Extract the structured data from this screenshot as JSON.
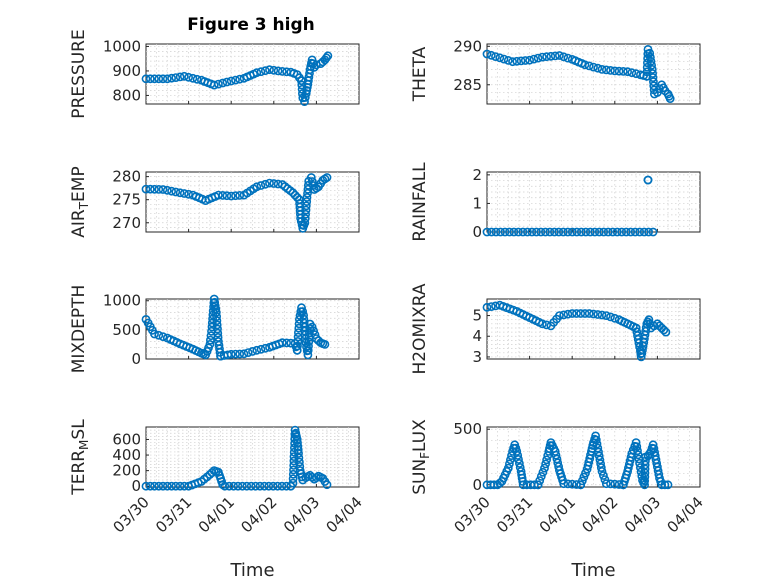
{
  "figure": {
    "title": "Figure 3 high",
    "marker_color": "#0072BD"
  },
  "chart_data": [
    {
      "type": "scatter",
      "ylabel": "PRESSURE",
      "xlabel": "",
      "xlim": [
        0,
        5
      ],
      "ylim": [
        765,
        1010
      ],
      "yticks": [
        800,
        900,
        1000
      ],
      "xticks": [],
      "segments": [
        [
          [
            0,
            868
          ],
          [
            0.5,
            868
          ],
          [
            0.9,
            878
          ],
          [
            1.3,
            862
          ],
          [
            1.6,
            842
          ],
          [
            1.9,
            855
          ],
          [
            2.3,
            870
          ],
          [
            2.6,
            893
          ],
          [
            2.9,
            905
          ],
          [
            3.2,
            898
          ],
          [
            3.4,
            895
          ],
          [
            3.55,
            885
          ],
          [
            3.65,
            860
          ]
        ],
        [
          [
            3.65,
            860
          ],
          [
            3.68,
            790
          ],
          [
            3.72,
            775
          ],
          [
            3.76,
            808
          ],
          [
            3.8,
            845
          ],
          [
            3.85,
            905
          ],
          [
            3.9,
            945
          ],
          [
            3.95,
            915
          ],
          [
            4.0,
            925
          ],
          [
            4.1,
            930
          ],
          [
            4.2,
            945
          ],
          [
            4.27,
            962
          ]
        ]
      ]
    },
    {
      "type": "scatter",
      "ylabel": "THETA",
      "xlabel": "",
      "xlim": [
        0,
        5
      ],
      "ylim": [
        282.5,
        290.3
      ],
      "yticks": [
        285,
        290
      ],
      "xticks": [],
      "segments": [
        [
          [
            0,
            289
          ],
          [
            0.3,
            288.5
          ],
          [
            0.6,
            288
          ],
          [
            1.0,
            288.2
          ],
          [
            1.3,
            288.6
          ],
          [
            1.7,
            288.8
          ],
          [
            2.0,
            288.3
          ],
          [
            2.3,
            287.6
          ],
          [
            2.7,
            287
          ],
          [
            3.0,
            286.8
          ],
          [
            3.3,
            286.7
          ],
          [
            3.6,
            286.3
          ],
          [
            3.75,
            286.1
          ]
        ],
        [
          [
            3.75,
            286.1
          ],
          [
            3.78,
            289.6
          ],
          [
            3.82,
            289.1
          ],
          [
            3.88,
            287
          ],
          [
            3.93,
            283.8
          ],
          [
            4.0,
            284
          ],
          [
            4.1,
            285
          ],
          [
            4.18,
            284.2
          ],
          [
            4.25,
            283.8
          ],
          [
            4.3,
            283.2
          ]
        ]
      ]
    },
    {
      "type": "scatter",
      "ylabel": "AIR_TEMP",
      "xlabel": "",
      "xlim": [
        0,
        5
      ],
      "ylim": [
        268,
        281
      ],
      "yticks": [
        270,
        275,
        280
      ],
      "xticks": [],
      "segments": [
        [
          [
            0,
            277.3
          ],
          [
            0.4,
            277.2
          ],
          [
            0.8,
            276.5
          ],
          [
            1.1,
            276
          ],
          [
            1.4,
            274.8
          ],
          [
            1.7,
            276
          ],
          [
            2.0,
            275.8
          ],
          [
            2.3,
            276
          ],
          [
            2.6,
            277.8
          ],
          [
            2.9,
            278.6
          ],
          [
            3.2,
            278.3
          ],
          [
            3.45,
            276.5
          ],
          [
            3.6,
            275
          ]
        ],
        [
          [
            3.6,
            275
          ],
          [
            3.63,
            271
          ],
          [
            3.68,
            268.8
          ],
          [
            3.73,
            270
          ],
          [
            3.78,
            275.5
          ],
          [
            3.82,
            279
          ],
          [
            3.88,
            279.8
          ],
          [
            3.95,
            277.2
          ],
          [
            4.05,
            277.8
          ],
          [
            4.15,
            279.2
          ],
          [
            4.25,
            279.8
          ]
        ]
      ]
    },
    {
      "type": "scatter",
      "ylabel": "RAINFALL",
      "xlabel": "",
      "xlim": [
        0,
        5
      ],
      "ylim": [
        0,
        2.1
      ],
      "yticks": [
        0,
        1,
        2
      ],
      "xticks": [],
      "segments": [
        [
          [
            0,
            0
          ],
          [
            3.9,
            0
          ]
        ],
        [
          [
            3.78,
            1.82
          ],
          [
            3.78,
            1.82
          ]
        ]
      ]
    },
    {
      "type": "scatter",
      "ylabel": "MIXDEPTH",
      "xlabel": "",
      "xlim": [
        0,
        5
      ],
      "ylim": [
        0,
        1030
      ],
      "yticks": [
        0,
        500,
        1000
      ],
      "xticks": [],
      "segments": [
        [
          [
            0,
            680
          ],
          [
            0.2,
            430
          ],
          [
            0.5,
            360
          ],
          [
            0.8,
            260
          ],
          [
            1.1,
            170
          ],
          [
            1.3,
            100
          ],
          [
            1.4,
            70
          ],
          [
            1.5,
            250
          ],
          [
            1.55,
            550
          ],
          [
            1.6,
            1030
          ],
          [
            1.65,
            800
          ],
          [
            1.7,
            300
          ],
          [
            1.75,
            50
          ]
        ],
        [
          [
            1.75,
            50
          ],
          [
            2.0,
            80
          ],
          [
            2.3,
            90
          ],
          [
            2.6,
            150
          ],
          [
            2.9,
            200
          ],
          [
            3.2,
            280
          ],
          [
            3.5,
            270
          ],
          [
            3.55,
            150
          ]
        ],
        [
          [
            3.55,
            150
          ],
          [
            3.6,
            680
          ],
          [
            3.65,
            880
          ],
          [
            3.7,
            750
          ],
          [
            3.75,
            280
          ],
          [
            3.8,
            70
          ],
          [
            3.85,
            600
          ],
          [
            3.9,
            550
          ],
          [
            4.0,
            350
          ],
          [
            4.1,
            280
          ],
          [
            4.2,
            250
          ]
        ]
      ]
    },
    {
      "type": "scatter",
      "ylabel": "H2OMIXRA",
      "xlabel": "",
      "xlim": [
        0,
        5
      ],
      "ylim": [
        2.9,
        5.8
      ],
      "yticks": [
        3,
        4,
        5
      ],
      "xticks": [],
      "segments": [
        [
          [
            0,
            5.4
          ],
          [
            0.3,
            5.5
          ],
          [
            0.7,
            5.2
          ],
          [
            1.0,
            4.9
          ],
          [
            1.3,
            4.6
          ],
          [
            1.5,
            4.5
          ],
          [
            1.7,
            5.0
          ],
          [
            2.0,
            5.1
          ],
          [
            2.4,
            5.1
          ],
          [
            2.8,
            5.0
          ],
          [
            3.1,
            4.8
          ],
          [
            3.3,
            4.6
          ],
          [
            3.5,
            4.4
          ]
        ],
        [
          [
            3.5,
            4.4
          ],
          [
            3.6,
            3.3
          ],
          [
            3.62,
            3.0
          ],
          [
            3.68,
            3.7
          ],
          [
            3.75,
            4.6
          ],
          [
            3.8,
            4.8
          ],
          [
            3.85,
            4.4
          ],
          [
            3.92,
            4.5
          ],
          [
            4.0,
            4.6
          ],
          [
            4.1,
            4.4
          ],
          [
            4.2,
            4.2
          ]
        ]
      ]
    },
    {
      "type": "scatter",
      "ylabel": "TERR_MSL",
      "xlabel": "Time",
      "xlim": [
        0,
        5
      ],
      "ylim": [
        -10,
        760
      ],
      "yticks": [
        0,
        200,
        400,
        600
      ],
      "xticks": [
        "03/30",
        "03/31",
        "04/01",
        "04/02",
        "04/03",
        "04/04"
      ],
      "segments": [
        [
          [
            0,
            0
          ],
          [
            1.0,
            0
          ],
          [
            1.3,
            60
          ],
          [
            1.5,
            150
          ],
          [
            1.6,
            200
          ],
          [
            1.7,
            180
          ],
          [
            1.75,
            100
          ],
          [
            1.8,
            20
          ],
          [
            1.85,
            0
          ],
          [
            3.4,
            0
          ]
        ],
        [
          [
            3.4,
            0
          ],
          [
            3.45,
            40
          ],
          [
            3.5,
            720
          ],
          [
            3.55,
            600
          ],
          [
            3.58,
            420
          ],
          [
            3.62,
            200
          ],
          [
            3.68,
            80
          ],
          [
            3.75,
            110
          ],
          [
            3.85,
            140
          ],
          [
            3.95,
            90
          ],
          [
            4.05,
            130
          ],
          [
            4.15,
            100
          ],
          [
            4.25,
            20
          ]
        ]
      ]
    },
    {
      "type": "scatter",
      "ylabel": "SUN_FLUX",
      "xlabel": "Time",
      "xlim": [
        0,
        5
      ],
      "ylim": [
        -20,
        520
      ],
      "yticks": [
        0,
        500
      ],
      "xticks": [
        "03/30",
        "03/31",
        "04/01",
        "04/02",
        "04/03",
        "04/04"
      ],
      "segments": [
        [
          [
            0,
            0
          ],
          [
            0.25,
            0
          ],
          [
            0.35,
            30
          ],
          [
            0.5,
            150
          ],
          [
            0.6,
            300
          ],
          [
            0.65,
            360
          ],
          [
            0.7,
            300
          ],
          [
            0.8,
            120
          ],
          [
            0.85,
            0
          ],
          [
            1.2,
            0
          ]
        ],
        [
          [
            1.2,
            0
          ],
          [
            1.35,
            150
          ],
          [
            1.45,
            300
          ],
          [
            1.5,
            380
          ],
          [
            1.6,
            300
          ],
          [
            1.7,
            130
          ],
          [
            1.8,
            10
          ],
          [
            2.2,
            0
          ]
        ],
        [
          [
            2.2,
            0
          ],
          [
            2.35,
            140
          ],
          [
            2.45,
            300
          ],
          [
            2.5,
            380
          ],
          [
            2.55,
            440
          ],
          [
            2.6,
            330
          ],
          [
            2.7,
            120
          ],
          [
            2.8,
            10
          ],
          [
            3.2,
            0
          ]
        ],
        [
          [
            3.2,
            0
          ],
          [
            3.3,
            120
          ],
          [
            3.4,
            280
          ],
          [
            3.5,
            380
          ],
          [
            3.55,
            270
          ],
          [
            3.65,
            40
          ],
          [
            3.7,
            0
          ],
          [
            3.72,
            250
          ],
          [
            3.78,
            260
          ],
          [
            3.85,
            300
          ],
          [
            3.9,
            360
          ],
          [
            3.95,
            260
          ],
          [
            4.0,
            160
          ],
          [
            4.05,
            60
          ],
          [
            4.1,
            0
          ],
          [
            4.25,
            0
          ]
        ]
      ]
    }
  ]
}
